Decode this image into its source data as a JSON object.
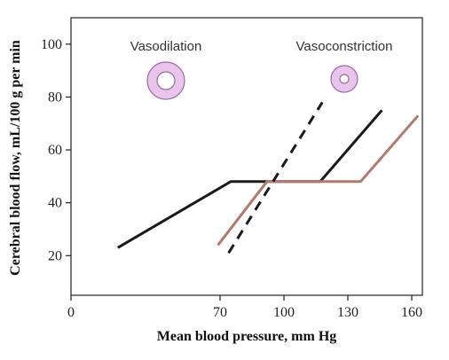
{
  "chart_data": {
    "type": "line",
    "title": "",
    "xlabel": "Mean blood pressure, mm Hg",
    "ylabel": "Cerebral blood flow, mL/100 g per min",
    "x_ticks": [
      0,
      70,
      100,
      130,
      160
    ],
    "y_ticks": [
      20,
      40,
      60,
      80,
      100
    ],
    "xlim": [
      0,
      165
    ],
    "ylim": [
      5,
      110
    ],
    "grid": false,
    "series": [
      {
        "style": "solid",
        "color": "#1a1a1a",
        "points": [
          [
            22,
            23
          ],
          [
            75,
            48
          ],
          [
            117,
            48
          ],
          [
            146,
            75
          ]
        ]
      },
      {
        "style": "solid",
        "color": "#b07a6c",
        "points": [
          [
            69,
            24
          ],
          [
            92,
            48
          ],
          [
            136,
            48
          ],
          [
            163,
            73
          ]
        ]
      },
      {
        "style": "dashed",
        "color": "#1a1a1a",
        "points": [
          [
            74,
            21
          ],
          [
            118,
            78
          ]
        ]
      }
    ],
    "annotations": [
      {
        "label": "Vasodilation",
        "icon": "dilated-vessel-icon"
      },
      {
        "label": "Vasoconstriction",
        "icon": "constricted-vessel-icon"
      }
    ],
    "colors": {
      "ring_fill": "#e9c5ec",
      "ring_stroke": "#9a6aa6"
    }
  }
}
